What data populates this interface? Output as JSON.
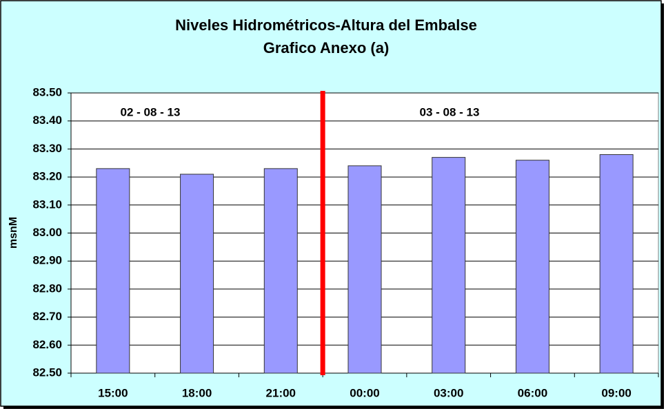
{
  "chart_data": {
    "type": "bar",
    "title": [
      "Niveles Hidrométricos-Altura del Embalse",
      "Grafico Anexo (a)"
    ],
    "y_label": "msnM",
    "annotations": [
      "02 - 08 - 13",
      "03 - 08 - 13"
    ],
    "categories": [
      "15:00",
      "18:00",
      "21:00",
      "00:00",
      "03:00",
      "06:00",
      "09:00"
    ],
    "values": [
      83.23,
      83.21,
      83.23,
      83.24,
      83.27,
      83.26,
      83.28
    ],
    "color": "#9999ff",
    "ylim": [
      82.5,
      83.5
    ],
    "yticks": [
      {
        "value": 82.5,
        "label": "82.50"
      },
      {
        "value": 82.6,
        "label": "82.60"
      },
      {
        "value": 82.7,
        "label": "82.70"
      },
      {
        "value": 82.8,
        "label": "82.80"
      },
      {
        "value": 82.9,
        "label": "82.90"
      },
      {
        "value": 83.0,
        "label": "83.00"
      },
      {
        "value": 83.1,
        "label": "83.10"
      },
      {
        "value": 83.2,
        "label": "83.20"
      },
      {
        "value": 83.3,
        "label": "83.30"
      },
      {
        "value": 83.4,
        "label": "83.40"
      },
      {
        "value": 83.5,
        "label": "83.50"
      }
    ],
    "grid": true
  }
}
